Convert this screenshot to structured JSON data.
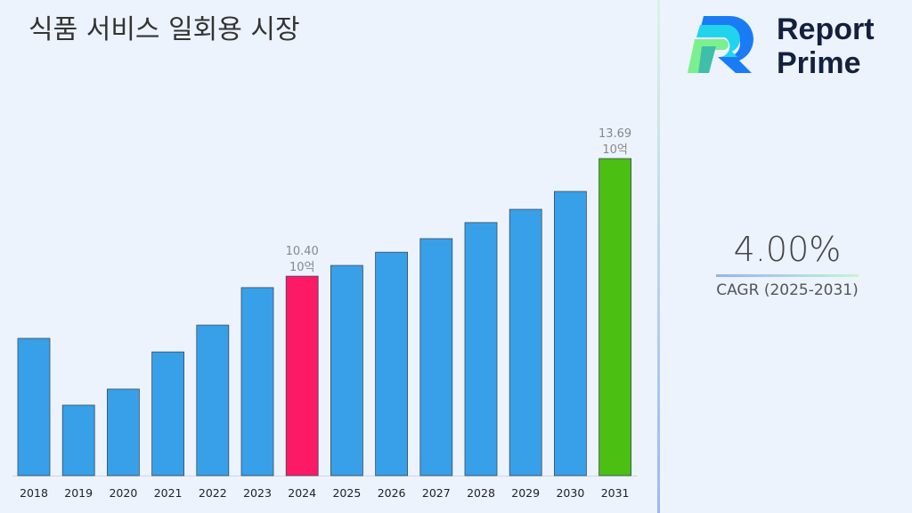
{
  "title": "식품 서비스 일회용 시장",
  "logo": {
    "line1": "Report",
    "line2": "Prime"
  },
  "cagr": {
    "value": "4.00%",
    "label": "CAGR (2025-2031)"
  },
  "colors": {
    "default": "#38a0e8",
    "highlight": "#fc1a66",
    "final": "#4bbf12"
  },
  "chart_data": {
    "type": "bar",
    "title": "식품 서비스 일회용 시장",
    "categories": [
      "2018",
      "2019",
      "2020",
      "2021",
      "2022",
      "2023",
      "2024",
      "2025",
      "2026",
      "2027",
      "2028",
      "2029",
      "2030",
      "2031"
    ],
    "values": [
      8.66,
      6.79,
      7.24,
      8.28,
      9.03,
      10.08,
      10.4,
      10.7,
      11.07,
      11.45,
      11.9,
      12.27,
      12.77,
      13.69
    ],
    "unit": "10억",
    "data_labels": {
      "2024": "10.40",
      "2031": "13.69"
    },
    "grid": false
  }
}
